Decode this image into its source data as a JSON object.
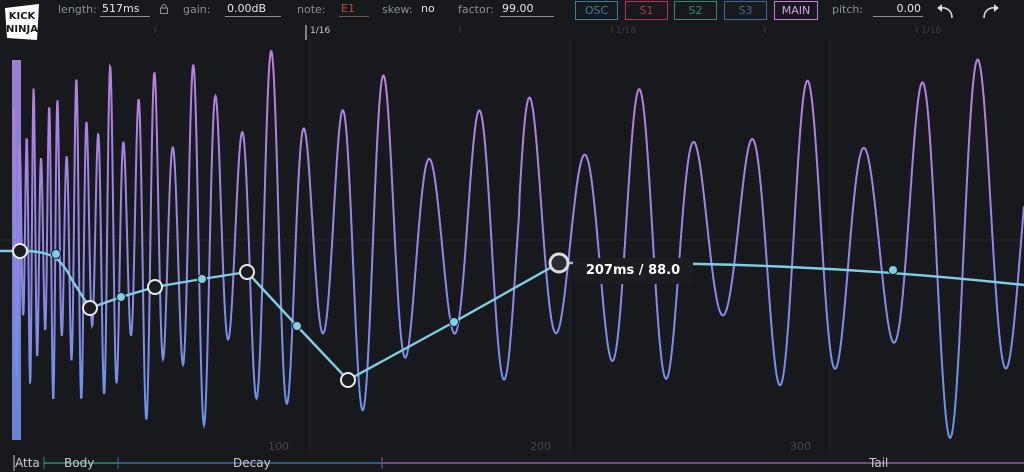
{
  "toolbar": {
    "length_label": "length:",
    "length_value": "517ms",
    "gain_label": "gain:",
    "gain_value": "0.00dB",
    "note_label": "note:",
    "note_value": "E1",
    "skew_label": "skew:",
    "skew_value": "no",
    "factor_label": "factor:",
    "factor_value": "99.00",
    "pitch_label": "pitch:",
    "pitch_value": "0.00",
    "icons": [
      "lock-icon",
      "undo-icon",
      "redo-icon"
    ]
  },
  "tabs": [
    {
      "label": "OSC",
      "color": "#3f7e9b"
    },
    {
      "label": "S1",
      "color": "#b2365a"
    },
    {
      "label": "S2",
      "color": "#2f8a76"
    },
    {
      "label": "S3",
      "color": "#3b6c9e"
    },
    {
      "label": "MAIN",
      "color": "#c47ed6"
    }
  ],
  "ruler": {
    "grid_label": "1/16",
    "dim_labels": [
      "1/16",
      "1/16"
    ]
  },
  "tooltip": "207ms / 88.0",
  "time_axis": [
    "100",
    "200",
    "300"
  ],
  "sections": [
    "Atta",
    "Body",
    "Decay",
    "Tail"
  ],
  "colors": {
    "background": "#17191d",
    "envelope": "#7fcde6",
    "wave_top": "#c07de0",
    "wave_bottom": "#5d96ea"
  },
  "logo_text": "KICK NINJA"
}
